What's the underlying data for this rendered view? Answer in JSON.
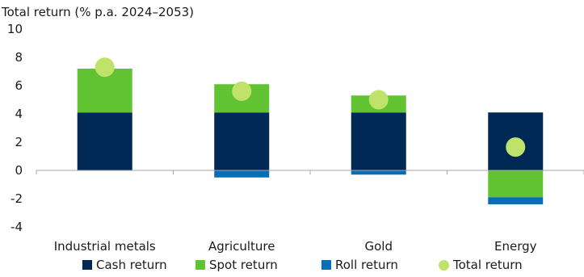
{
  "chart_data": {
    "type": "bar",
    "stacked": true,
    "title": "Total return (% p.a. 2024–2053)",
    "xlabel": "",
    "ylabel": "",
    "ylim": [
      -4,
      10
    ],
    "yticks": [
      10,
      8,
      6,
      4,
      2,
      0,
      -2,
      -4
    ],
    "grid": false,
    "legend_position": "bottom",
    "categories": [
      "Industrial metals",
      "Agriculture",
      "Gold",
      "Energy"
    ],
    "series": [
      {
        "name": "Cash return",
        "kind": "bar",
        "color": "#002855",
        "values": [
          4.1,
          4.1,
          4.1,
          4.1
        ]
      },
      {
        "name": "Spot return",
        "kind": "bar",
        "color": "#62c332",
        "values": [
          3.1,
          2.0,
          1.2,
          -1.9
        ]
      },
      {
        "name": "Roll return",
        "kind": "bar",
        "color": "#0a6eb4",
        "values": [
          0.0,
          -0.5,
          -0.3,
          -0.5
        ]
      },
      {
        "name": "Total return",
        "kind": "dot",
        "color": "#bfe36a",
        "values": [
          7.3,
          5.6,
          5.0,
          1.65
        ]
      }
    ]
  }
}
